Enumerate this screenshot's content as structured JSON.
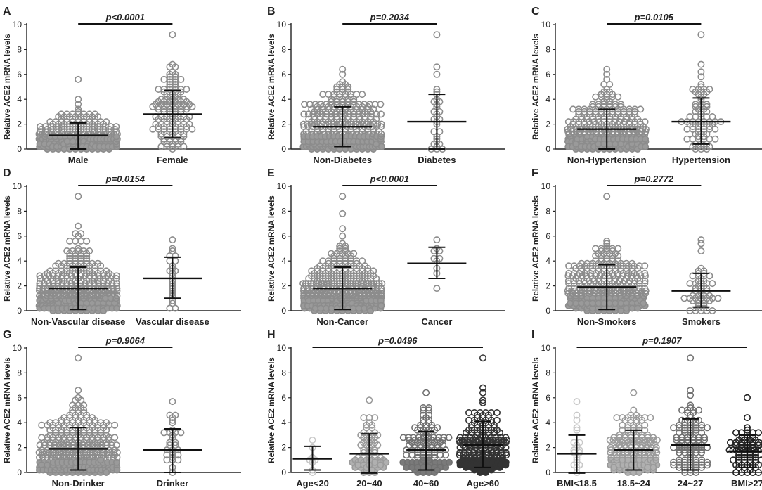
{
  "chart_data": [
    {
      "type": "scatter",
      "panel": "A",
      "ylabel": "Relative ACE2 mRNA levels",
      "ylim": [
        0,
        10
      ],
      "yticks": [
        0,
        2,
        4,
        6,
        8,
        10
      ],
      "pvalue": "p<0.0001",
      "groups": [
        {
          "name": "Male",
          "mean": 1.1,
          "sd_low": 0.0,
          "sd_high": 2.1,
          "max": 5.6,
          "n": 220,
          "color": "#8c8c8c",
          "fill": "#9a9a9a"
        },
        {
          "name": "Female",
          "mean": 2.8,
          "sd_low": 0.9,
          "sd_high": 4.7,
          "max": 9.2,
          "n": 140,
          "color": "#8c8c8c",
          "fill": "none"
        }
      ]
    },
    {
      "type": "scatter",
      "panel": "B",
      "ylabel": "Relative ACE2 mRNA levels",
      "ylim": [
        0,
        10
      ],
      "yticks": [
        0,
        2,
        4,
        6,
        8,
        10
      ],
      "pvalue": "p=0.2034",
      "groups": [
        {
          "name": "Non-Diabetes",
          "mean": 1.8,
          "sd_low": 0.2,
          "sd_high": 3.4,
          "max": 6.4,
          "n": 330,
          "color": "#8c8c8c",
          "fill": "#9a9a9a"
        },
        {
          "name": "Diabetes",
          "mean": 2.2,
          "sd_low": 0.0,
          "sd_high": 4.4,
          "max": 9.2,
          "n": 30,
          "color": "#8c8c8c",
          "fill": "none"
        }
      ]
    },
    {
      "type": "scatter",
      "panel": "C",
      "ylabel": "Relative ACE2 mRNA levels",
      "ylim": [
        0,
        10
      ],
      "yticks": [
        0,
        2,
        4,
        6,
        8,
        10
      ],
      "pvalue": "p=0.0105",
      "groups": [
        {
          "name": "Non-Hypertension",
          "mean": 1.6,
          "sd_low": 0.0,
          "sd_high": 3.2,
          "max": 6.4,
          "n": 290,
          "color": "#8c8c8c",
          "fill": "#9a9a9a"
        },
        {
          "name": "Hypertension",
          "mean": 2.2,
          "sd_low": 0.4,
          "sd_high": 4.1,
          "max": 9.2,
          "n": 80,
          "color": "#8c8c8c",
          "fill": "none"
        }
      ]
    },
    {
      "type": "scatter",
      "panel": "D",
      "ylabel": "Relative ACE2 mRNA levels",
      "ylim": [
        0,
        10
      ],
      "yticks": [
        0,
        2,
        4,
        6,
        8,
        10
      ],
      "pvalue": "p=0.0154",
      "groups": [
        {
          "name": "Non-Vascular disease",
          "mean": 1.8,
          "sd_low": 0.1,
          "sd_high": 3.5,
          "max": 9.2,
          "n": 330,
          "color": "#8c8c8c",
          "fill": "#9a9a9a"
        },
        {
          "name": "Vascular disease",
          "mean": 2.6,
          "sd_low": 1.0,
          "sd_high": 4.3,
          "max": 5.7,
          "n": 24,
          "color": "#8c8c8c",
          "fill": "none"
        }
      ]
    },
    {
      "type": "scatter",
      "panel": "E",
      "ylabel": "Relative ACE2 mRNA levels",
      "ylim": [
        0,
        10
      ],
      "yticks": [
        0,
        2,
        4,
        6,
        8,
        10
      ],
      "pvalue": "p<0.0001",
      "groups": [
        {
          "name": "Non-Cancer",
          "mean": 1.8,
          "sd_low": 0.1,
          "sd_high": 3.5,
          "max": 9.2,
          "n": 340,
          "color": "#8c8c8c",
          "fill": "#9a9a9a"
        },
        {
          "name": "Cancer",
          "mean": 3.8,
          "sd_low": 2.6,
          "sd_high": 5.1,
          "max": 5.7,
          "n": 10,
          "color": "#8c8c8c",
          "fill": "none"
        }
      ]
    },
    {
      "type": "scatter",
      "panel": "F",
      "ylabel": "Relative ACE2 mRNA levels",
      "ylim": [
        0,
        10
      ],
      "yticks": [
        0,
        2,
        4,
        6,
        8,
        10
      ],
      "pvalue": "p=0.2772",
      "groups": [
        {
          "name": "Non-Smokers",
          "mean": 1.9,
          "sd_low": 0.1,
          "sd_high": 3.7,
          "max": 9.2,
          "n": 310,
          "color": "#8c8c8c",
          "fill": "#9a9a9a"
        },
        {
          "name": "Smokers",
          "mean": 1.6,
          "sd_low": 0.3,
          "sd_high": 3.0,
          "max": 5.7,
          "n": 55,
          "color": "#8c8c8c",
          "fill": "none"
        }
      ]
    },
    {
      "type": "scatter",
      "panel": "G",
      "ylabel": "Relative ACE2 mRNA levels",
      "ylim": [
        0,
        10
      ],
      "yticks": [
        0,
        2,
        4,
        6,
        8,
        10
      ],
      "pvalue": "p=0.9064",
      "groups": [
        {
          "name": "Non-Drinker",
          "mean": 1.9,
          "sd_low": 0.2,
          "sd_high": 3.6,
          "max": 9.2,
          "n": 330,
          "color": "#8c8c8c",
          "fill": "#9a9a9a"
        },
        {
          "name": "Drinker",
          "mean": 1.8,
          "sd_low": 0.0,
          "sd_high": 3.5,
          "max": 5.7,
          "n": 30,
          "color": "#8c8c8c",
          "fill": "none"
        }
      ]
    },
    {
      "type": "scatter",
      "panel": "H",
      "ylabel": "Relative ACE2 mRNA levels",
      "ylim": [
        0,
        10
      ],
      "yticks": [
        0,
        2,
        4,
        6,
        8,
        10
      ],
      "pvalue": "p=0.0496",
      "groups": [
        {
          "name": "Age<20",
          "mean": 1.1,
          "sd_low": 0.2,
          "sd_high": 2.1,
          "max": 2.6,
          "n": 8,
          "color": "#c8c8c8",
          "fill": "none"
        },
        {
          "name": "20~40",
          "mean": 1.5,
          "sd_low": -0.1,
          "sd_high": 3.1,
          "max": 5.8,
          "n": 70,
          "color": "#9a9a9a",
          "fill": "#b0b0b0"
        },
        {
          "name": "40~60",
          "mean": 1.8,
          "sd_low": 0.2,
          "sd_high": 3.3,
          "max": 6.4,
          "n": 120,
          "color": "#707070",
          "fill": "#7a7a7a"
        },
        {
          "name": "Age>60",
          "mean": 2.2,
          "sd_low": 0.4,
          "sd_high": 4.1,
          "max": 9.2,
          "n": 190,
          "color": "#333333",
          "fill": "#333333"
        }
      ]
    },
    {
      "type": "scatter",
      "panel": "I",
      "ylabel": "Relative ACE2 mRNA levels",
      "ylim": [
        0,
        10
      ],
      "yticks": [
        0,
        2,
        4,
        6,
        8,
        10
      ],
      "pvalue": "p=0.1907",
      "groups": [
        {
          "name": "BMI<18.5",
          "mean": 1.5,
          "sd_low": -0.1,
          "sd_high": 3.0,
          "max": 5.7,
          "n": 20,
          "color": "#c8c8c8",
          "fill": "none"
        },
        {
          "name": "18.5~24",
          "mean": 1.8,
          "sd_low": 0.2,
          "sd_high": 3.4,
          "max": 6.4,
          "n": 170,
          "color": "#9a9a9a",
          "fill": "#b0b0b0"
        },
        {
          "name": "24~27",
          "mean": 2.2,
          "sd_low": 0.2,
          "sd_high": 4.3,
          "max": 9.2,
          "n": 110,
          "color": "#707070",
          "fill": "none"
        },
        {
          "name": "BMI>27",
          "mean": 1.7,
          "sd_low": 0.4,
          "sd_high": 3.0,
          "max": 6.0,
          "n": 80,
          "color": "#222222",
          "fill": "none"
        }
      ]
    }
  ]
}
